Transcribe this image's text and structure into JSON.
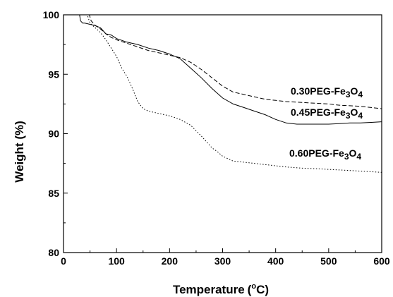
{
  "chart_data": {
    "type": "line",
    "title": "",
    "xlabel": "Temperature",
    "xlabel_unit_parts": [
      "(",
      "o",
      "C)"
    ],
    "ylabel": "Weight (%)",
    "xlim": [
      0,
      600
    ],
    "ylim": [
      80,
      100
    ],
    "x_ticks": [
      0,
      100,
      200,
      300,
      400,
      500,
      600
    ],
    "y_ticks": [
      80,
      85,
      90,
      95,
      100
    ],
    "grid": false,
    "legend": "none (series labelled directly on plot)",
    "series": [
      {
        "name": "0.30PEG-Fe3O4",
        "label_parts": [
          "0.30PEG-Fe",
          "3",
          "O",
          "4"
        ],
        "style": "dashed",
        "x": [
          48,
          52,
          60,
          70,
          80,
          90,
          100,
          120,
          140,
          160,
          180,
          200,
          220,
          240,
          260,
          280,
          300,
          320,
          340,
          360,
          380,
          400,
          420,
          440,
          460,
          480,
          500,
          520,
          540,
          560,
          580,
          600
        ],
        "y": [
          100.1,
          99.5,
          99.1,
          98.8,
          98.4,
          98.1,
          97.9,
          97.6,
          97.3,
          97.0,
          96.8,
          96.6,
          96.4,
          96.0,
          95.4,
          94.7,
          94.0,
          93.5,
          93.3,
          93.1,
          92.9,
          92.8,
          92.7,
          92.65,
          92.6,
          92.55,
          92.5,
          92.4,
          92.35,
          92.3,
          92.2,
          92.1
        ]
      },
      {
        "name": "0.45PEG-Fe3O4",
        "label_parts": [
          "0.45PEG-Fe",
          "3",
          "O",
          "4"
        ],
        "style": "solid",
        "x": [
          30,
          32,
          36,
          40,
          50,
          60,
          70,
          80,
          90,
          100,
          120,
          140,
          160,
          180,
          200,
          220,
          240,
          260,
          280,
          300,
          320,
          340,
          360,
          380,
          400,
          420,
          440,
          460,
          480,
          500,
          520,
          540,
          560,
          580,
          600
        ],
        "y": [
          100.1,
          99.5,
          99.3,
          99.3,
          99.2,
          99.1,
          98.9,
          98.4,
          98.3,
          98.0,
          97.7,
          97.5,
          97.2,
          97.0,
          96.7,
          96.3,
          95.5,
          94.7,
          93.8,
          93.0,
          92.5,
          92.2,
          91.9,
          91.6,
          91.2,
          90.9,
          90.8,
          90.8,
          90.8,
          90.8,
          90.85,
          90.9,
          90.9,
          90.95,
          91.0
        ]
      },
      {
        "name": "0.60PEG-Fe3O4",
        "label_parts": [
          "0.60PEG-Fe",
          "3",
          "O",
          "4"
        ],
        "style": "dotted",
        "x": [
          44,
          50,
          60,
          70,
          80,
          90,
          100,
          110,
          120,
          130,
          140,
          150,
          160,
          170,
          180,
          200,
          220,
          240,
          260,
          270,
          280,
          290,
          300,
          320,
          340,
          360,
          380,
          400,
          420,
          450,
          480,
          500,
          520,
          540,
          560,
          580,
          600
        ],
        "y": [
          100.1,
          99.3,
          98.9,
          98.5,
          97.9,
          97.2,
          96.5,
          95.5,
          94.8,
          93.8,
          92.7,
          92.1,
          91.9,
          91.8,
          91.7,
          91.5,
          91.2,
          90.7,
          89.8,
          89.3,
          88.8,
          88.5,
          88.1,
          87.7,
          87.6,
          87.5,
          87.4,
          87.3,
          87.2,
          87.1,
          87.05,
          87.0,
          86.95,
          86.9,
          86.85,
          86.8,
          86.75
        ]
      }
    ]
  }
}
